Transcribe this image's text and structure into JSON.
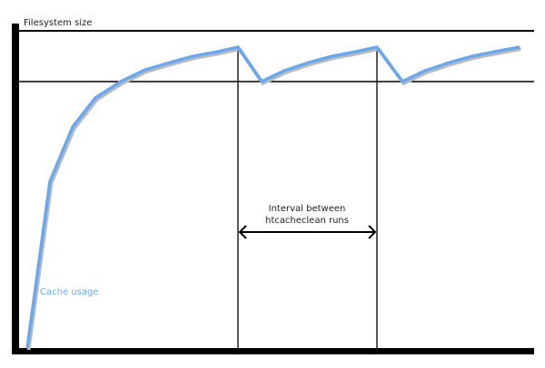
{
  "diagram": {
    "y_axis_label": "Filesystem size",
    "curve_label": "Cache usage",
    "interval_label_line1": "Interval between",
    "interval_label_line2": "htcacheclean runs",
    "curve_color": "#6aa8ee",
    "axis_color": "#000000"
  }
}
